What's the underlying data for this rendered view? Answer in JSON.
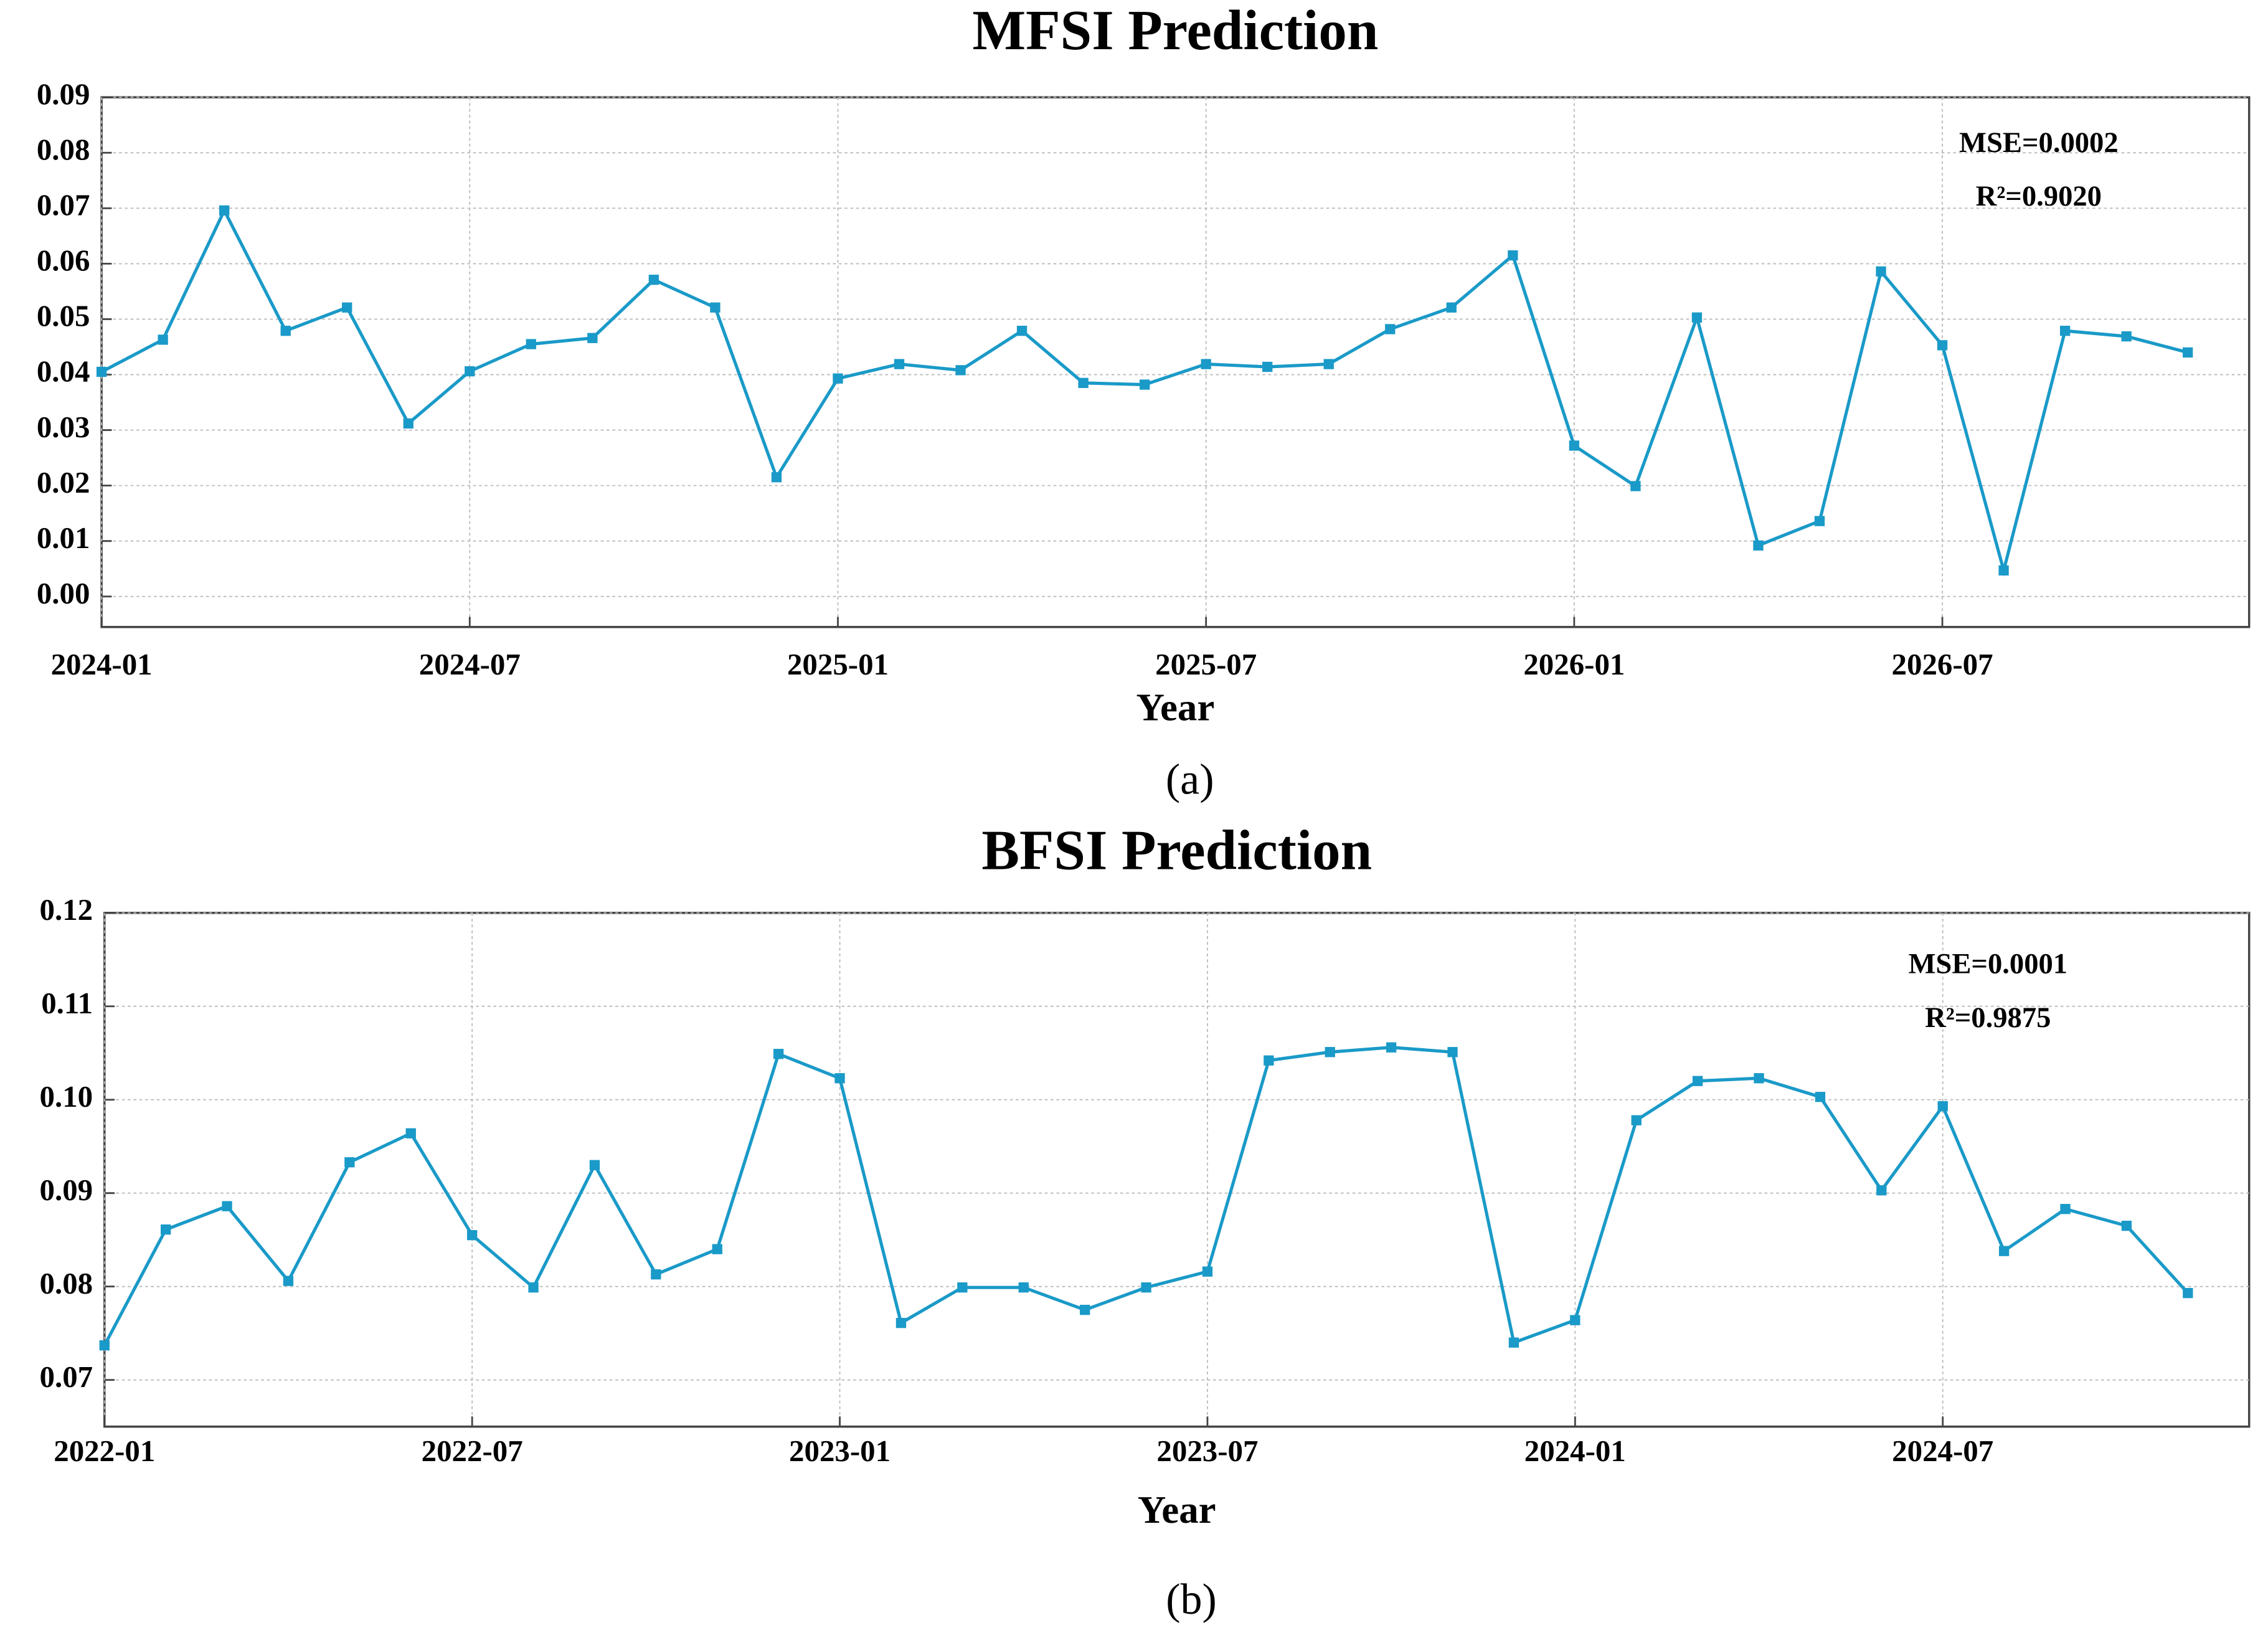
{
  "chart_data": [
    {
      "type": "line",
      "title": "MFSI Prediction",
      "x_label": "Year",
      "caption": "(a)",
      "annotations": [
        "MSE=0.0002",
        "R²=0.9020"
      ],
      "color": "#1a9ac8",
      "grid": true,
      "x": [
        "2024-01",
        "2024-02",
        "2024-03",
        "2024-04",
        "2024-05",
        "2024-06",
        "2024-07",
        "2024-08",
        "2024-09",
        "2024-10",
        "2024-11",
        "2024-12",
        "2025-01",
        "2025-02",
        "2025-03",
        "2025-04",
        "2025-05",
        "2025-06",
        "2025-07",
        "2025-08",
        "2025-09",
        "2025-10",
        "2025-11",
        "2025-12",
        "2026-01",
        "2026-02",
        "2026-03",
        "2026-04",
        "2026-05",
        "2026-06",
        "2026-07",
        "2026-08",
        "2026-09",
        "2026-10",
        "2026-11"
      ],
      "values": [
        0.0405,
        0.0463,
        0.0696,
        0.0479,
        0.0521,
        0.0312,
        0.0406,
        0.0455,
        0.0466,
        0.0571,
        0.0521,
        0.0215,
        0.0393,
        0.0419,
        0.0408,
        0.0479,
        0.0385,
        0.0382,
        0.0419,
        0.0414,
        0.0419,
        0.0482,
        0.0521,
        0.0615,
        0.0272,
        0.0199,
        0.0503,
        0.0092,
        0.0136,
        0.0586,
        0.0453,
        0.0047,
        0.0479,
        0.0469,
        0.044
      ],
      "xlim": [
        "2024-01",
        "2026-12"
      ],
      "xticks": [
        "2024-01",
        "2024-07",
        "2025-01",
        "2025-07",
        "2026-01",
        "2026-07"
      ],
      "ylim": [
        -0.0055,
        0.09
      ],
      "yticks": [
        {
          "value": 0,
          "label": "0.00"
        },
        0.01,
        0.02,
        0.03,
        0.04,
        0.05,
        0.06,
        0.07,
        0.08,
        0.09
      ]
    },
    {
      "type": "line",
      "title": "BFSI Prediction",
      "x_label": "Year",
      "caption": "(b)",
      "annotations": [
        "MSE=0.0001",
        "R²=0.9875"
      ],
      "color": "#1a9ac8",
      "grid": true,
      "x": [
        "2022-01",
        "2022-02",
        "2022-03",
        "2022-04",
        "2022-05",
        "2022-06",
        "2022-07",
        "2022-08",
        "2022-09",
        "2022-10",
        "2022-11",
        "2022-12",
        "2023-01",
        "2023-02",
        "2023-03",
        "2023-04",
        "2023-05",
        "2023-06",
        "2023-07",
        "2023-08",
        "2023-09",
        "2023-10",
        "2023-11",
        "2023-12",
        "2024-01",
        "2024-02",
        "2024-03",
        "2024-04",
        "2024-05",
        "2024-06",
        "2024-07",
        "2024-08",
        "2024-09",
        "2024-10",
        "2024-11"
      ],
      "values": [
        0.0737,
        0.0861,
        0.0886,
        0.0806,
        0.0933,
        0.0964,
        0.0855,
        0.0799,
        0.093,
        0.0813,
        0.084,
        0.1049,
        0.1023,
        0.0761,
        0.0799,
        0.0799,
        0.0775,
        0.0799,
        0.0816,
        0.1042,
        0.1051,
        0.1056,
        0.1051,
        0.074,
        0.0764,
        0.0978,
        0.102,
        0.1023,
        0.1003,
        0.0903,
        0.0993,
        0.0838,
        0.0883,
        0.0865,
        0.0793
      ],
      "xlim": [
        "2022-01",
        "2024-12"
      ],
      "xticks": [
        "2022-01",
        "2022-07",
        "2023-01",
        "2023-07",
        "2024-01",
        "2024-07"
      ],
      "ylim": [
        0.065,
        0.12
      ],
      "yticks": [
        0.07,
        0.08,
        0.09,
        {
          "value": 0.1,
          "label": "0.10"
        },
        0.11,
        0.12
      ]
    }
  ]
}
